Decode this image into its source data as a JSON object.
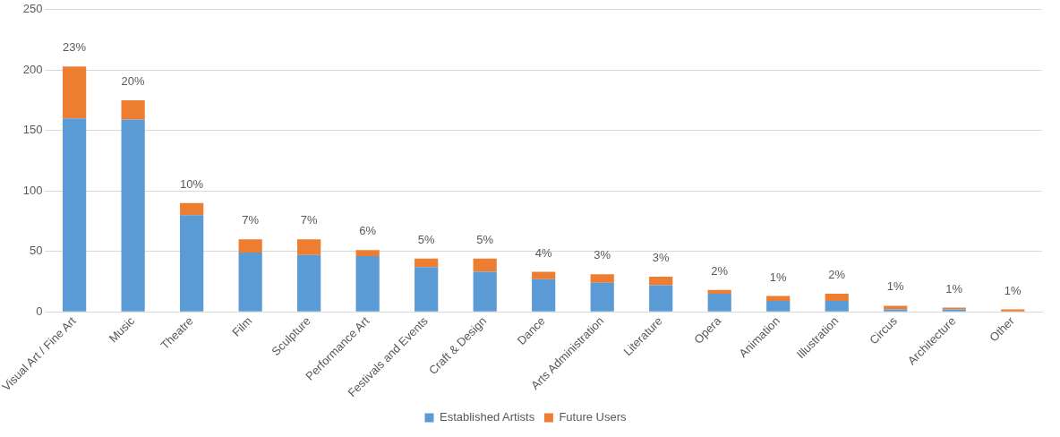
{
  "chart_data": {
    "type": "bar",
    "stacked": true,
    "categories": [
      "Visual Art / Fine Art",
      "Music",
      "Theatre",
      "Film",
      "Sculpture",
      "Performance Art",
      "Festivals and Events",
      "Craft & Design",
      "Dance",
      "Arts Administration",
      "Literature",
      "Opera",
      "Animation",
      "Illustration",
      "Circus",
      "Architecture",
      "Other"
    ],
    "series": [
      {
        "name": "Established Artists",
        "color": "#5b9bd5",
        "values": [
          160,
          159,
          80,
          49,
          47,
          46,
          37,
          33,
          27,
          24,
          22,
          15,
          9,
          9,
          2,
          2,
          0
        ]
      },
      {
        "name": "Future Users",
        "color": "#ed7d31",
        "values": [
          43,
          16,
          10,
          11,
          13,
          5,
          7,
          11,
          6,
          7,
          7,
          3,
          4,
          6,
          3,
          1.5,
          2
        ]
      }
    ],
    "annotations": [
      {
        "text": "23%",
        "x": "Visual Art / Fine Art",
        "y": 203
      },
      {
        "text": "20%",
        "x": "Music",
        "y": 175
      },
      {
        "text": "10%",
        "x": "Theatre",
        "y": 90
      },
      {
        "text": "7%",
        "x": "Film",
        "y": 60
      },
      {
        "text": "7%",
        "x": "Sculpture",
        "y": 60
      },
      {
        "text": "6%",
        "x": "Performance Art",
        "y": 51
      },
      {
        "text": "5%",
        "x": "Festivals and Events",
        "y": 44
      },
      {
        "text": "5%",
        "x": "Craft & Design",
        "y": 44
      },
      {
        "text": "4%",
        "x": "Dance",
        "y": 33
      },
      {
        "text": "3%",
        "x": "Arts Administration",
        "y": 31
      },
      {
        "text": "3%",
        "x": "Literature",
        "y": 29
      },
      {
        "text": "2%",
        "x": "Opera",
        "y": 18
      },
      {
        "text": "1%",
        "x": "Animation",
        "y": 13
      },
      {
        "text": "2%",
        "x": "Illustration",
        "y": 15
      },
      {
        "text": "1%",
        "x": "Circus",
        "y": 5
      },
      {
        "text": "1%",
        "x": "Architecture",
        "y": 3.5
      },
      {
        "text": "1%",
        "x": "Other",
        "y": 2
      }
    ],
    "ylim": [
      0,
      250
    ],
    "yticks": [
      0,
      50,
      100,
      150,
      200,
      250
    ],
    "grid": "y",
    "legend": "bottom"
  }
}
